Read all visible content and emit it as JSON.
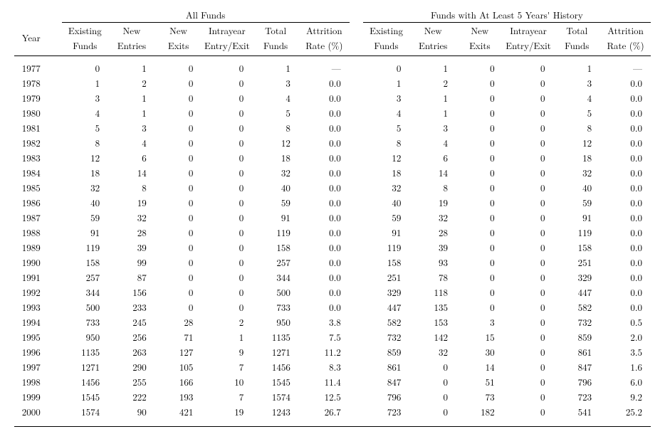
{
  "headers": {
    "super_left": "All Funds",
    "super_right": "Funds with At Least 5 Years' History",
    "year": "Year",
    "existing": "Existing",
    "existing2": "Funds",
    "newentries": "New",
    "newentries2": "Entries",
    "newexits": "New",
    "newexits2": "Exits",
    "intrayear": "Intrayear",
    "intrayear2": "Entry/Exit",
    "total": "Total",
    "total2": "Funds",
    "attr": "Attrition",
    "attr2": "Rate (%)"
  },
  "rows": [
    {
      "year": "1977",
      "a_exist": "0",
      "a_new": "1",
      "a_exit": "0",
      "a_intra": "0",
      "a_total": "1",
      "a_attr": "—",
      "b_exist": "0",
      "b_new": "1",
      "b_exit": "0",
      "b_intra": "0",
      "b_total": "1",
      "b_attr": "—"
    },
    {
      "year": "1978",
      "a_exist": "1",
      "a_new": "2",
      "a_exit": "0",
      "a_intra": "0",
      "a_total": "3",
      "a_attr": "0.0",
      "b_exist": "1",
      "b_new": "2",
      "b_exit": "0",
      "b_intra": "0",
      "b_total": "3",
      "b_attr": "0.0"
    },
    {
      "year": "1979",
      "a_exist": "3",
      "a_new": "1",
      "a_exit": "0",
      "a_intra": "0",
      "a_total": "4",
      "a_attr": "0.0",
      "b_exist": "3",
      "b_new": "1",
      "b_exit": "0",
      "b_intra": "0",
      "b_total": "4",
      "b_attr": "0.0"
    },
    {
      "year": "1980",
      "a_exist": "4",
      "a_new": "1",
      "a_exit": "0",
      "a_intra": "0",
      "a_total": "5",
      "a_attr": "0.0",
      "b_exist": "4",
      "b_new": "1",
      "b_exit": "0",
      "b_intra": "0",
      "b_total": "5",
      "b_attr": "0.0"
    },
    {
      "year": "1981",
      "a_exist": "5",
      "a_new": "3",
      "a_exit": "0",
      "a_intra": "0",
      "a_total": "8",
      "a_attr": "0.0",
      "b_exist": "5",
      "b_new": "3",
      "b_exit": "0",
      "b_intra": "0",
      "b_total": "8",
      "b_attr": "0.0"
    },
    {
      "year": "1982",
      "a_exist": "8",
      "a_new": "4",
      "a_exit": "0",
      "a_intra": "0",
      "a_total": "12",
      "a_attr": "0.0",
      "b_exist": "8",
      "b_new": "4",
      "b_exit": "0",
      "b_intra": "0",
      "b_total": "12",
      "b_attr": "0.0"
    },
    {
      "year": "1983",
      "a_exist": "12",
      "a_new": "6",
      "a_exit": "0",
      "a_intra": "0",
      "a_total": "18",
      "a_attr": "0.0",
      "b_exist": "12",
      "b_new": "6",
      "b_exit": "0",
      "b_intra": "0",
      "b_total": "18",
      "b_attr": "0.0"
    },
    {
      "year": "1984",
      "a_exist": "18",
      "a_new": "14",
      "a_exit": "0",
      "a_intra": "0",
      "a_total": "32",
      "a_attr": "0.0",
      "b_exist": "18",
      "b_new": "14",
      "b_exit": "0",
      "b_intra": "0",
      "b_total": "32",
      "b_attr": "0.0"
    },
    {
      "year": "1985",
      "a_exist": "32",
      "a_new": "8",
      "a_exit": "0",
      "a_intra": "0",
      "a_total": "40",
      "a_attr": "0.0",
      "b_exist": "32",
      "b_new": "8",
      "b_exit": "0",
      "b_intra": "0",
      "b_total": "40",
      "b_attr": "0.0"
    },
    {
      "year": "1986",
      "a_exist": "40",
      "a_new": "19",
      "a_exit": "0",
      "a_intra": "0",
      "a_total": "59",
      "a_attr": "0.0",
      "b_exist": "40",
      "b_new": "19",
      "b_exit": "0",
      "b_intra": "0",
      "b_total": "59",
      "b_attr": "0.0"
    },
    {
      "year": "1987",
      "a_exist": "59",
      "a_new": "32",
      "a_exit": "0",
      "a_intra": "0",
      "a_total": "91",
      "a_attr": "0.0",
      "b_exist": "59",
      "b_new": "32",
      "b_exit": "0",
      "b_intra": "0",
      "b_total": "91",
      "b_attr": "0.0"
    },
    {
      "year": "1988",
      "a_exist": "91",
      "a_new": "28",
      "a_exit": "0",
      "a_intra": "0",
      "a_total": "119",
      "a_attr": "0.0",
      "b_exist": "91",
      "b_new": "28",
      "b_exit": "0",
      "b_intra": "0",
      "b_total": "119",
      "b_attr": "0.0"
    },
    {
      "year": "1989",
      "a_exist": "119",
      "a_new": "39",
      "a_exit": "0",
      "a_intra": "0",
      "a_total": "158",
      "a_attr": "0.0",
      "b_exist": "119",
      "b_new": "39",
      "b_exit": "0",
      "b_intra": "0",
      "b_total": "158",
      "b_attr": "0.0"
    },
    {
      "year": "1990",
      "a_exist": "158",
      "a_new": "99",
      "a_exit": "0",
      "a_intra": "0",
      "a_total": "257",
      "a_attr": "0.0",
      "b_exist": "158",
      "b_new": "93",
      "b_exit": "0",
      "b_intra": "0",
      "b_total": "251",
      "b_attr": "0.0"
    },
    {
      "year": "1991",
      "a_exist": "257",
      "a_new": "87",
      "a_exit": "0",
      "a_intra": "0",
      "a_total": "344",
      "a_attr": "0.0",
      "b_exist": "251",
      "b_new": "78",
      "b_exit": "0",
      "b_intra": "0",
      "b_total": "329",
      "b_attr": "0.0"
    },
    {
      "year": "1992",
      "a_exist": "344",
      "a_new": "156",
      "a_exit": "0",
      "a_intra": "0",
      "a_total": "500",
      "a_attr": "0.0",
      "b_exist": "329",
      "b_new": "118",
      "b_exit": "0",
      "b_intra": "0",
      "b_total": "447",
      "b_attr": "0.0"
    },
    {
      "year": "1993",
      "a_exist": "500",
      "a_new": "233",
      "a_exit": "0",
      "a_intra": "0",
      "a_total": "733",
      "a_attr": "0.0",
      "b_exist": "447",
      "b_new": "135",
      "b_exit": "0",
      "b_intra": "0",
      "b_total": "582",
      "b_attr": "0.0"
    },
    {
      "year": "1994",
      "a_exist": "733",
      "a_new": "245",
      "a_exit": "28",
      "a_intra": "2",
      "a_total": "950",
      "a_attr": "3.8",
      "b_exist": "582",
      "b_new": "153",
      "b_exit": "3",
      "b_intra": "0",
      "b_total": "732",
      "b_attr": "0.5"
    },
    {
      "year": "1995",
      "a_exist": "950",
      "a_new": "256",
      "a_exit": "71",
      "a_intra": "1",
      "a_total": "1135",
      "a_attr": "7.5",
      "b_exist": "732",
      "b_new": "142",
      "b_exit": "15",
      "b_intra": "0",
      "b_total": "859",
      "b_attr": "2.0"
    },
    {
      "year": "1996",
      "a_exist": "1135",
      "a_new": "263",
      "a_exit": "127",
      "a_intra": "9",
      "a_total": "1271",
      "a_attr": "11.2",
      "b_exist": "859",
      "b_new": "32",
      "b_exit": "30",
      "b_intra": "0",
      "b_total": "861",
      "b_attr": "3.5"
    },
    {
      "year": "1997",
      "a_exist": "1271",
      "a_new": "290",
      "a_exit": "105",
      "a_intra": "7",
      "a_total": "1456",
      "a_attr": "8.3",
      "b_exist": "861",
      "b_new": "0",
      "b_exit": "14",
      "b_intra": "0",
      "b_total": "847",
      "b_attr": "1.6"
    },
    {
      "year": "1998",
      "a_exist": "1456",
      "a_new": "255",
      "a_exit": "166",
      "a_intra": "10",
      "a_total": "1545",
      "a_attr": "11.4",
      "b_exist": "847",
      "b_new": "0",
      "b_exit": "51",
      "b_intra": "0",
      "b_total": "796",
      "b_attr": "6.0"
    },
    {
      "year": "1999",
      "a_exist": "1545",
      "a_new": "222",
      "a_exit": "193",
      "a_intra": "7",
      "a_total": "1574",
      "a_attr": "12.5",
      "b_exist": "796",
      "b_new": "0",
      "b_exit": "73",
      "b_intra": "0",
      "b_total": "723",
      "b_attr": "9.2"
    },
    {
      "year": "2000",
      "a_exist": "1574",
      "a_new": "90",
      "a_exit": "421",
      "a_intra": "19",
      "a_total": "1243",
      "a_attr": "26.7",
      "b_exist": "723",
      "b_new": "0",
      "b_exit": "182",
      "b_intra": "0",
      "b_total": "541",
      "b_attr": "25.2"
    }
  ],
  "style": {
    "font_family": "Latin Modern Roman, CMU Serif, Times New Roman, serif",
    "font_size_pt": 10,
    "text_color": "#000000",
    "background_color": "#ffffff",
    "rule_color": "#000000"
  }
}
